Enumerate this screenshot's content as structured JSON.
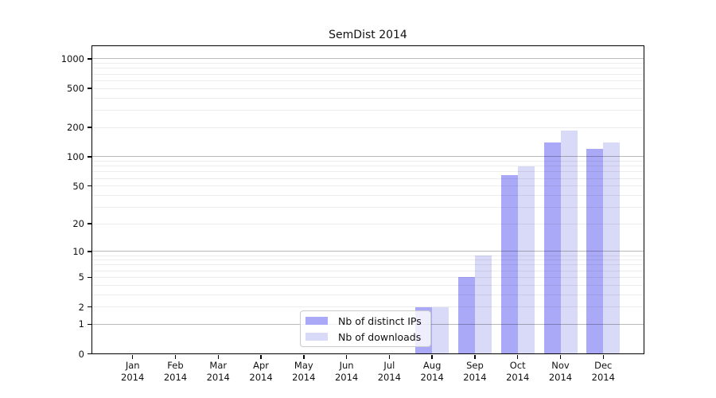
{
  "chart_data": {
    "type": "bar",
    "title": "SemDist 2014",
    "x_year": "2014",
    "categories": [
      "Jan",
      "Feb",
      "Mar",
      "Apr",
      "May",
      "Jun",
      "Jul",
      "Aug",
      "Sep",
      "Oct",
      "Nov",
      "Dec"
    ],
    "x_tick_labels": [
      "Jan 2014",
      "Feb 2014",
      "Mar 2014",
      "Apr 2014",
      "May 2014",
      "Jun 2014",
      "Jul 2014",
      "Aug 2014",
      "Sep 2014",
      "Oct 2014",
      "Nov 2014",
      "Dec 2014"
    ],
    "series": [
      {
        "key": "distinct-ips",
        "name": "Nb of distinct IPs",
        "color": "#a9a9f8",
        "values": [
          0,
          0,
          0,
          0,
          0,
          0,
          0,
          2,
          5,
          65,
          140,
          120
        ]
      },
      {
        "key": "downloads",
        "name": "Nb of downloads",
        "color": "#d9d9f8",
        "values": [
          0,
          0,
          0,
          0,
          0,
          0,
          0,
          2,
          9,
          80,
          185,
          140
        ]
      }
    ],
    "y_axis": {
      "scale": "symlog (position proportional to log10(1+value))",
      "ticks": [
        0,
        1,
        2,
        5,
        10,
        20,
        50,
        100,
        200,
        500,
        1000
      ],
      "range": [
        0,
        1370
      ]
    },
    "grid": {
      "major_at": [
        1,
        10,
        100,
        1000
      ],
      "minor": "2-9 within each decade",
      "major_color": "#bababa",
      "minor_color": "#ececec"
    },
    "legend": {
      "position": "lower center, inside plot",
      "items": [
        "Nb of distinct IPs",
        "Nb of downloads"
      ]
    }
  }
}
